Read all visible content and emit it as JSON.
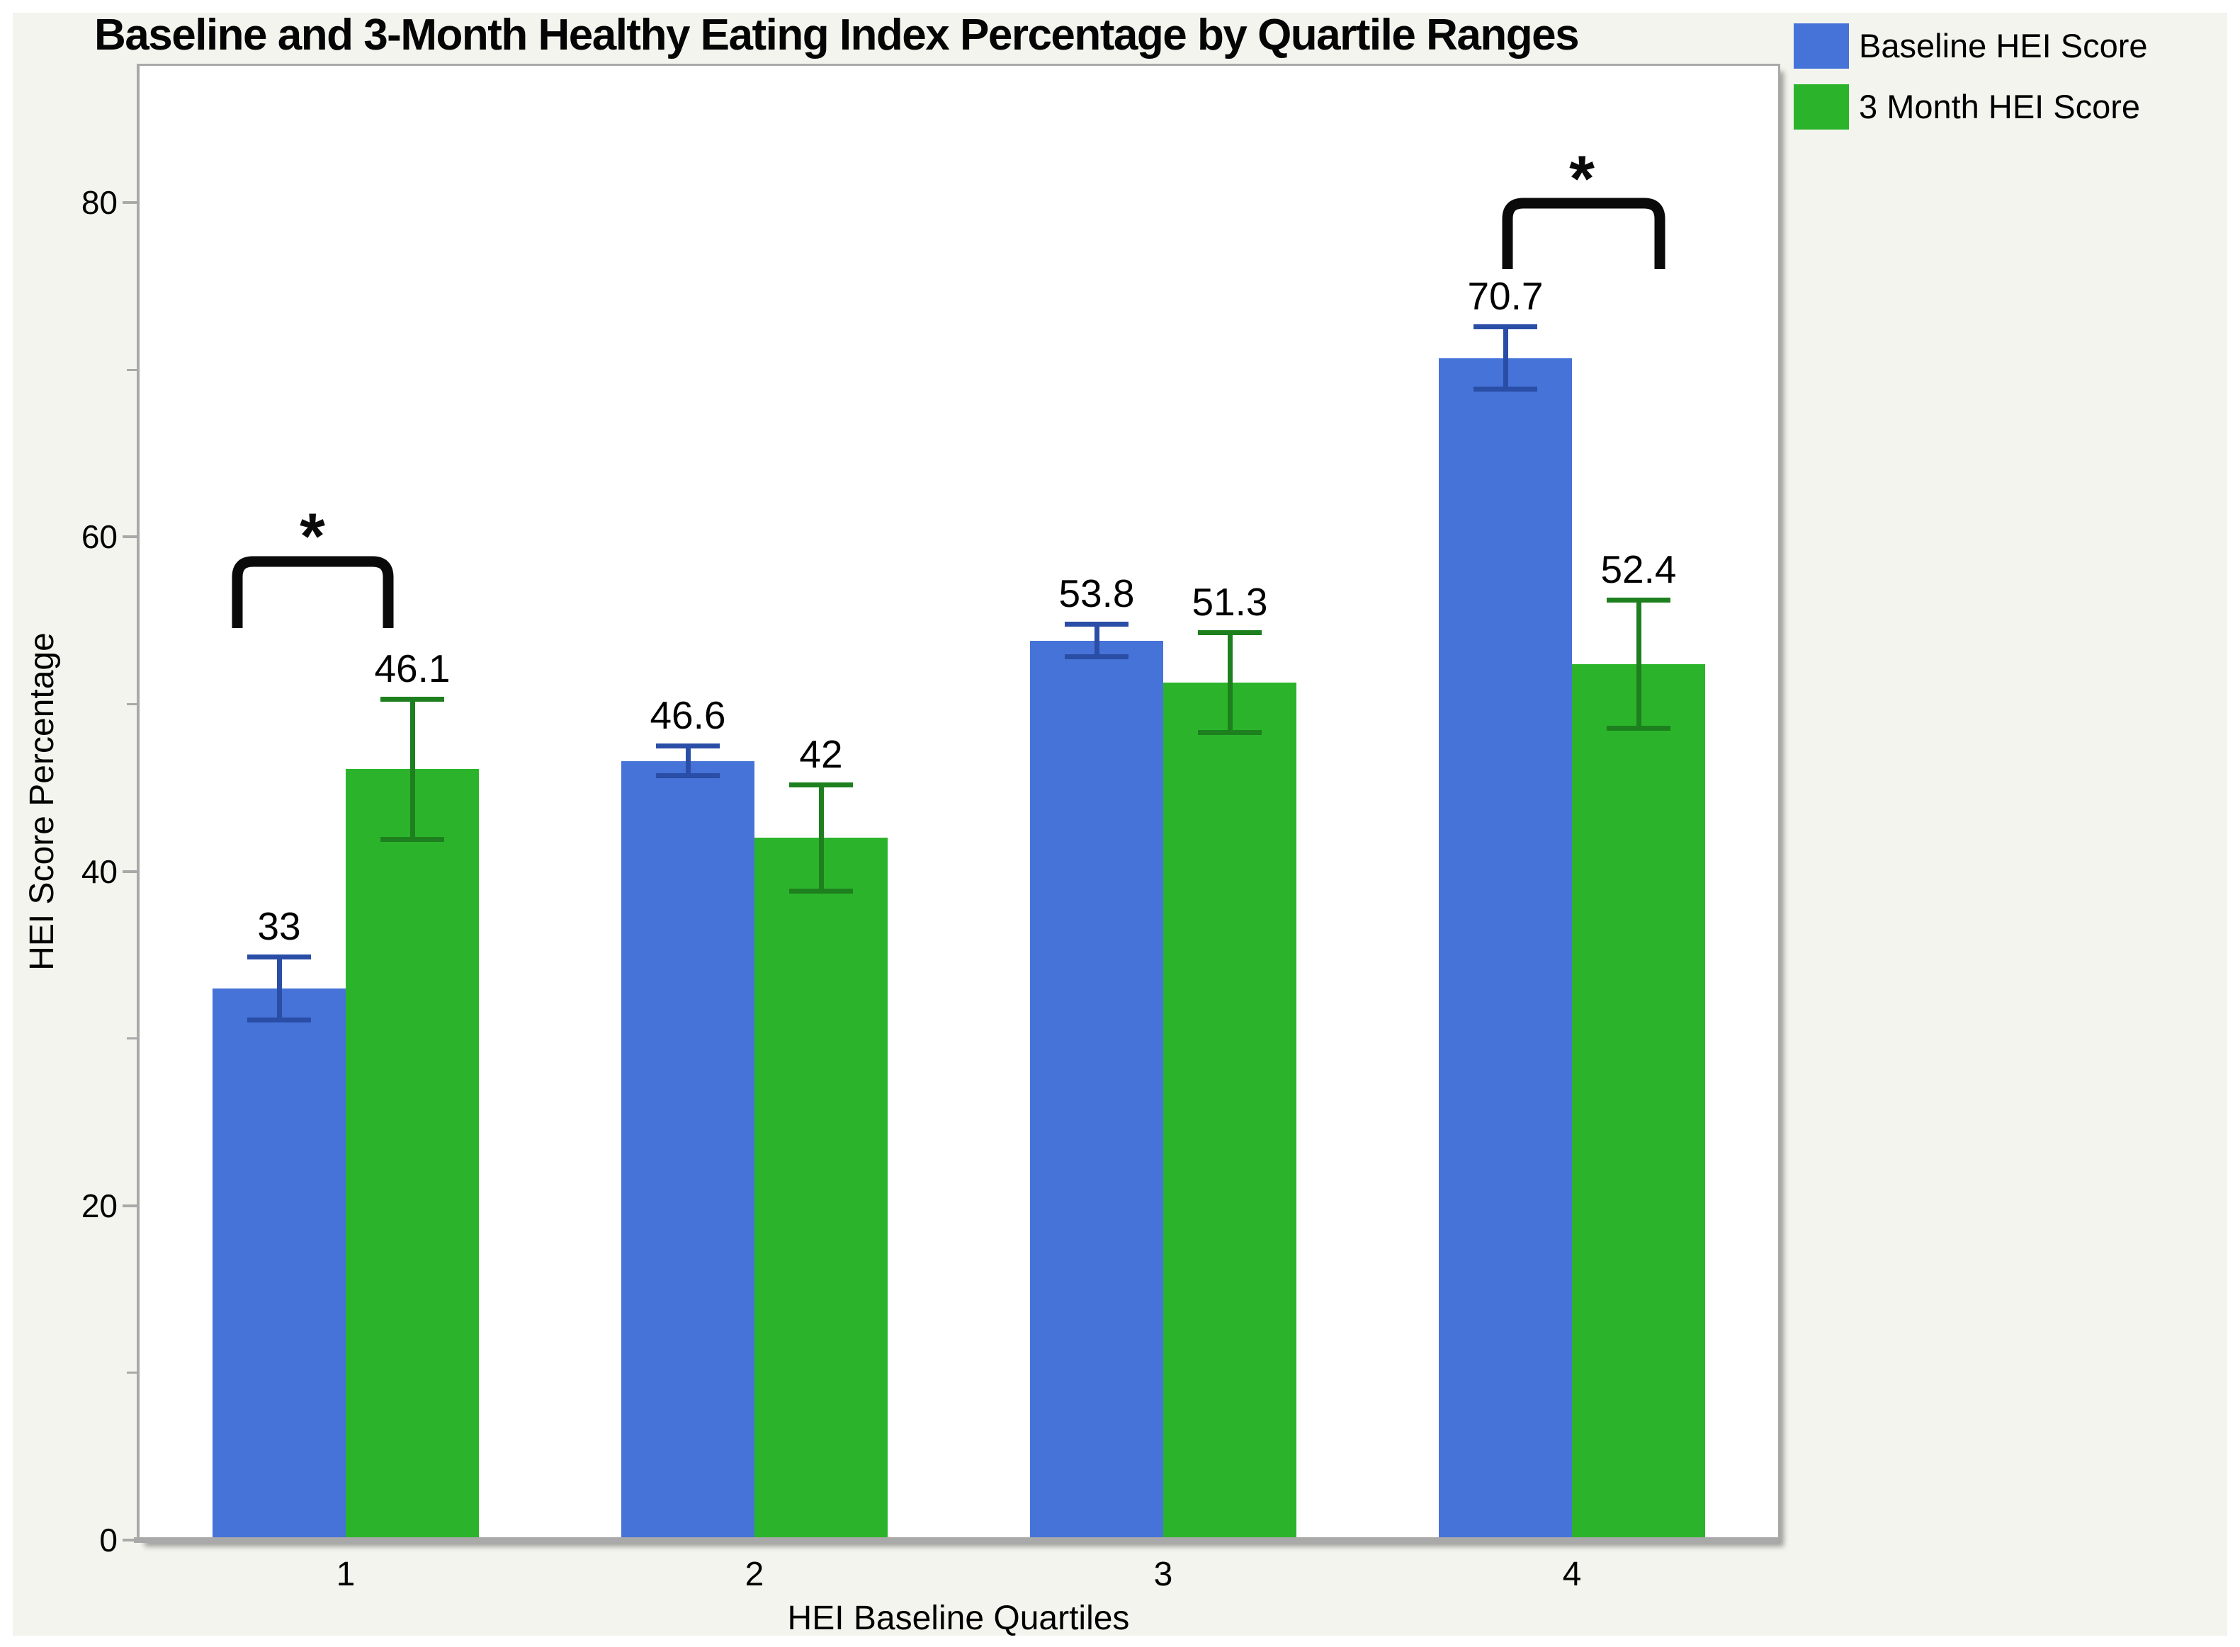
{
  "title": "Baseline and 3-Month Healthy Eating Index Percentage by Quartile Ranges",
  "legend": {
    "items": [
      {
        "label": "Baseline HEI Score",
        "color": "#4673d8"
      },
      {
        "label": "3 Month HEI Score",
        "color": "#2bb42b"
      }
    ]
  },
  "colors": {
    "background_panel": "#f4f4ee",
    "plot_background": "#ffffff",
    "axis_gray": "#a9a9a9",
    "baseline_blue": "#4673d8",
    "three_month_green": "#2bb42b",
    "baseline_error_blue": "#2a4da6",
    "three_month_error_green": "#1e7f1e",
    "bracket_black": "#0a0a0a"
  },
  "chart_data": {
    "type": "bar",
    "title": "Baseline and 3-Month Healthy Eating Index Percentage by Quartile Ranges",
    "xlabel": "HEI Baseline Quartiles",
    "ylabel": "HEI Score Percentage",
    "categories": [
      "1",
      "2",
      "3",
      "4"
    ],
    "series": [
      {
        "name": "Baseline HEI Score",
        "color": "#4673d8",
        "error_color": "#2a4da6",
        "values": [
          33,
          46.6,
          53.8,
          70.7
        ],
        "labels": [
          "33",
          "46.6",
          "53.8",
          "70.7"
        ],
        "errors": [
          1.9,
          0.9,
          1.0,
          1.9
        ]
      },
      {
        "name": "3 Month HEI Score",
        "color": "#2bb42b",
        "error_color": "#1e7f1e",
        "values": [
          46.1,
          42,
          51.3,
          52.4
        ],
        "labels": [
          "46.1",
          "42",
          "51.3",
          "52.4"
        ],
        "errors": [
          4.2,
          3.2,
          3.0,
          3.85
        ]
      }
    ],
    "ylim": [
      0,
      88
    ],
    "yticks_major": [
      0,
      20,
      40,
      60,
      80
    ],
    "yticks_minor": [
      10,
      30,
      50,
      70
    ],
    "grid": false,
    "legend_position": "top-right",
    "annotations": [
      {
        "type": "significance-bracket",
        "label": "*",
        "between": [
          "Baseline HEI Score",
          "3 Month HEI Score"
        ],
        "category": "1"
      },
      {
        "type": "significance-bracket",
        "label": "*",
        "between": [
          "Baseline HEI Score",
          "3 Month HEI Score"
        ],
        "category": "4"
      }
    ]
  }
}
